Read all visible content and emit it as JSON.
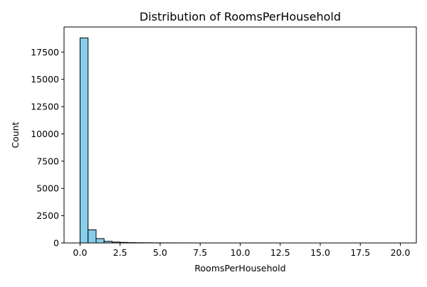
{
  "chart_data": {
    "type": "bar",
    "title": "Distribution of RoomsPerHousehold",
    "xlabel": "RoomsPerHousehold",
    "ylabel": "Count",
    "xlim": [
      -1.0,
      21.0
    ],
    "ylim": [
      0,
      19800
    ],
    "x_ticks": [
      0.0,
      2.5,
      5.0,
      7.5,
      10.0,
      12.5,
      15.0,
      17.5,
      20.0
    ],
    "x_tick_labels": [
      "0.0",
      "2.5",
      "5.0",
      "7.5",
      "10.0",
      "12.5",
      "15.0",
      "17.5",
      "20.0"
    ],
    "y_ticks": [
      0,
      2500,
      5000,
      7500,
      10000,
      12500,
      15000,
      17500
    ],
    "y_tick_labels": [
      "0",
      "2500",
      "5000",
      "7500",
      "10000",
      "12500",
      "15000",
      "17500"
    ],
    "bin_width": 0.5,
    "bins_start": [
      0.0,
      0.5,
      1.0,
      1.5,
      2.0,
      2.5,
      3.0,
      3.5,
      4.0,
      4.5,
      5.0,
      5.5,
      6.0,
      6.5,
      7.0,
      7.5,
      8.0,
      8.5,
      9.0,
      9.5,
      10.0,
      10.5,
      11.0,
      11.5,
      12.0,
      12.5,
      13.0,
      13.5,
      14.0,
      14.5,
      15.0,
      15.5,
      16.0,
      16.5,
      17.0,
      17.5,
      18.0,
      18.5,
      19.0,
      19.5
    ],
    "values": [
      18800,
      1200,
      400,
      150,
      80,
      50,
      30,
      20,
      15,
      10,
      8,
      6,
      5,
      4,
      3,
      3,
      2,
      2,
      2,
      1,
      1,
      1,
      1,
      1,
      1,
      0,
      0,
      0,
      0,
      0,
      0,
      0,
      0,
      0,
      0,
      0,
      0,
      0,
      0,
      1
    ],
    "bar_color": "#87ceeb",
    "edge_color": "#000000",
    "grid": false
  }
}
